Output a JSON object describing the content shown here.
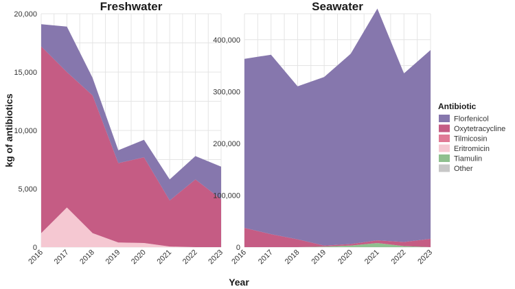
{
  "chart_data": {
    "type": "area",
    "stacked": true,
    "xlabel": "Year",
    "ylabel": "kg of antibiotics",
    "x": [
      2016,
      2017,
      2018,
      2019,
      2020,
      2021,
      2022,
      2023
    ],
    "legend": {
      "title": "Antibiotic",
      "position": "right",
      "items": [
        "Florfenicol",
        "Oxytetracycline",
        "Tilmicosin",
        "Eritromicin",
        "Tiamulin",
        "Other"
      ]
    },
    "colors": {
      "Florfenicol": "#8677ad",
      "Oxytetracycline": "#c55c84",
      "Tilmicosin": "#e07a96",
      "Eritromicin": "#f5c8d2",
      "Tiamulin": "#8fc08f",
      "Other": "#c7c7c7"
    },
    "panels": [
      {
        "title": "Freshwater",
        "ylim": [
          0,
          20000
        ],
        "yticks": [
          0,
          5000,
          10000,
          15000,
          20000
        ],
        "ytick_labels": [
          "0",
          "5,000",
          "10,000",
          "15,000",
          "20,000"
        ],
        "grid": true,
        "series": [
          {
            "name": "Eritromicin",
            "values": [
              1200,
              3400,
              1200,
              400,
              350,
              50,
              0,
              0
            ]
          },
          {
            "name": "Tilmicosin",
            "values": [
              0,
              0,
              0,
              0,
              0,
              0,
              0,
              0
            ]
          },
          {
            "name": "Oxytetracycline",
            "values": [
              16000,
              11600,
              11800,
              6800,
              7350,
              3950,
              5800,
              4100
            ]
          },
          {
            "name": "Tiamulin",
            "values": [
              0,
              0,
              0,
              0,
              0,
              0,
              0,
              0
            ]
          },
          {
            "name": "Other",
            "values": [
              0,
              0,
              0,
              0,
              0,
              0,
              0,
              0
            ]
          },
          {
            "name": "Florfenicol",
            "values": [
              1900,
              3900,
              1500,
              1100,
              1500,
              1800,
              2000,
              2800
            ]
          }
        ]
      },
      {
        "title": "Seawater",
        "ylim": [
          0,
          450000
        ],
        "yticks": [
          0,
          100000,
          200000,
          300000,
          400000
        ],
        "ytick_labels": [
          "0",
          "100,000",
          "200,000",
          "300,000",
          "400,000"
        ],
        "grid": true,
        "series": [
          {
            "name": "Eritromicin",
            "values": [
              0,
              0,
              0,
              0,
              0,
              0,
              0,
              0
            ]
          },
          {
            "name": "Tiamulin",
            "values": [
              0,
              0,
              0,
              1000,
              3000,
              8000,
              2000,
              0
            ]
          },
          {
            "name": "Tilmicosin",
            "values": [
              0,
              0,
              0,
              0,
              0,
              0,
              0,
              0
            ]
          },
          {
            "name": "Oxytetracycline",
            "values": [
              37000,
              25000,
              15000,
              2000,
              3000,
              5000,
              8000,
              16000
            ]
          },
          {
            "name": "Other",
            "values": [
              0,
              0,
              0,
              0,
              0,
              0,
              0,
              0
            ]
          },
          {
            "name": "Florfenicol",
            "values": [
              326000,
              346000,
              295000,
              325000,
              367000,
              447000,
              325000,
              364000
            ]
          }
        ]
      }
    ]
  }
}
